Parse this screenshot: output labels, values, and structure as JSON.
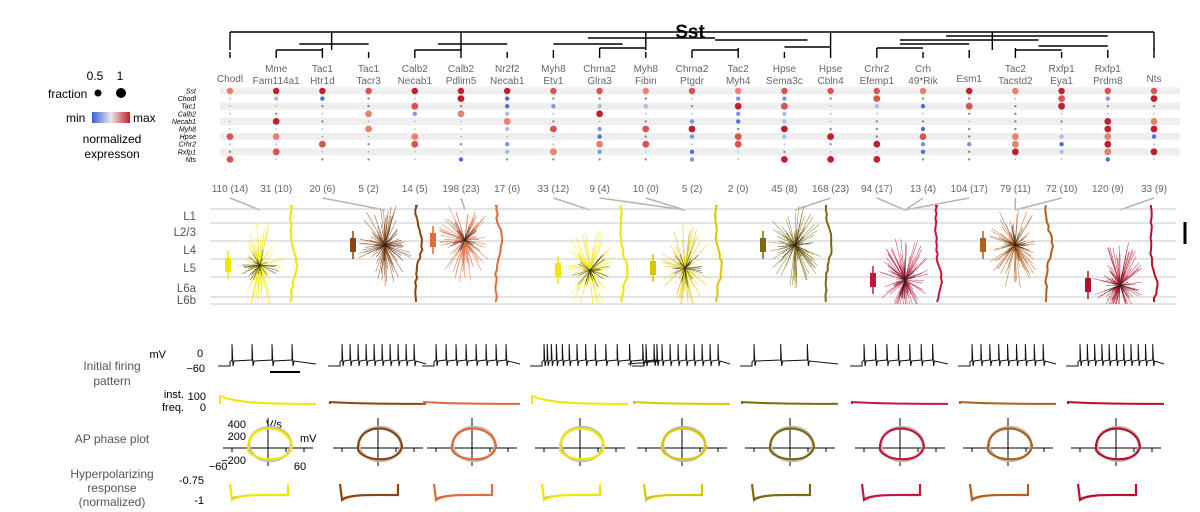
{
  "title": "Sst",
  "legend": {
    "fraction_label": "fraction",
    "fraction_values": [
      "0.5",
      "1"
    ],
    "min_label": "min",
    "max_label": "max",
    "norm_label_1": "normalized",
    "norm_label_2": "expresson"
  },
  "genes": [
    "Sst",
    "Chodl",
    "Tac1",
    "Calb2",
    "Necab1",
    "Myh8",
    "Hpse",
    "Crhr2",
    "Rxfp1",
    "Nts"
  ],
  "clusters": [
    {
      "l1": "Chodl",
      "l2": "",
      "count": "110 (14)"
    },
    {
      "l1": "Mme",
      "l2": "Fam114a1",
      "count": "31 (10)"
    },
    {
      "l1": "Tac1",
      "l2": "Htr1d",
      "count": "20 (6)"
    },
    {
      "l1": "Tac1",
      "l2": "Tacr3",
      "count": "5 (2)"
    },
    {
      "l1": "Calb2",
      "l2": "Necab1",
      "count": "14 (5)"
    },
    {
      "l1": "Calb2",
      "l2": "Pdlim5",
      "count": "198 (23)"
    },
    {
      "l1": "Nr2f2",
      "l2": "Necab1",
      "count": "17 (6)"
    },
    {
      "l1": "Myh8",
      "l2": "Etv1",
      "count": "33 (12)"
    },
    {
      "l1": "Chrna2",
      "l2": "Glra3",
      "count": "9 (4)"
    },
    {
      "l1": "Myh8",
      "l2": "Fibin",
      "count": "10 (0)"
    },
    {
      "l1": "Chrna2",
      "l2": "Ptgdr",
      "count": "5 (2)"
    },
    {
      "l1": "Tac2",
      "l2": "Myh4",
      "count": "2 (0)"
    },
    {
      "l1": "Hpse",
      "l2": "Sema3c",
      "count": "45 (8)"
    },
    {
      "l1": "Hpse",
      "l2": "Cbln4",
      "count": "168 (23)"
    },
    {
      "l1": "Crhr2",
      "l2": "Efemp1",
      "count": "94 (17)"
    },
    {
      "l1": "Crh",
      "l2": "49*Rik",
      "count": "13 (4)"
    },
    {
      "l1": "Esm1",
      "l2": "",
      "count": "104 (17)"
    },
    {
      "l1": "Tac2",
      "l2": "Tacstd2",
      "count": "79 (11)"
    },
    {
      "l1": "Rxfp1",
      "l2": "Eya1",
      "count": "72 (10)"
    },
    {
      "l1": "Rxfp1",
      "l2": "Prdm8",
      "count": "120 (9)"
    },
    {
      "l1": "Nts",
      "l2": "",
      "count": "33 (9)"
    }
  ],
  "layers": [
    "L1",
    "L2/3",
    "L4",
    "L5",
    "L6a",
    "L6b"
  ],
  "morpho_colors": [
    "#f2e600",
    "#8b4513",
    "#e06a3a",
    "#f2e600",
    "#d9c800",
    "#7d6a10",
    "#c2183c",
    "#b0601a",
    "#b8102a"
  ],
  "rows": {
    "firing": "Initial firing",
    "firing2": "pattern",
    "freq": "inst.",
    "freq2": "freq.",
    "phase": "AP phase plot",
    "hyper1": "Hyperpolarizing",
    "hyper2": "response",
    "hyper3": "(normalized)"
  },
  "axis_labels": {
    "mv": "mV",
    "zero": "0",
    "minus60": "−60",
    "f100": "100",
    "f0": "0",
    "vs400": "400",
    "vs200": "200",
    "vsneg200": "−200",
    "vs": "V/s",
    "mvx": "mV",
    "x_neg60": "−60",
    "x_60": "60",
    "h075": "-0.75",
    "h1": "-1"
  }
}
